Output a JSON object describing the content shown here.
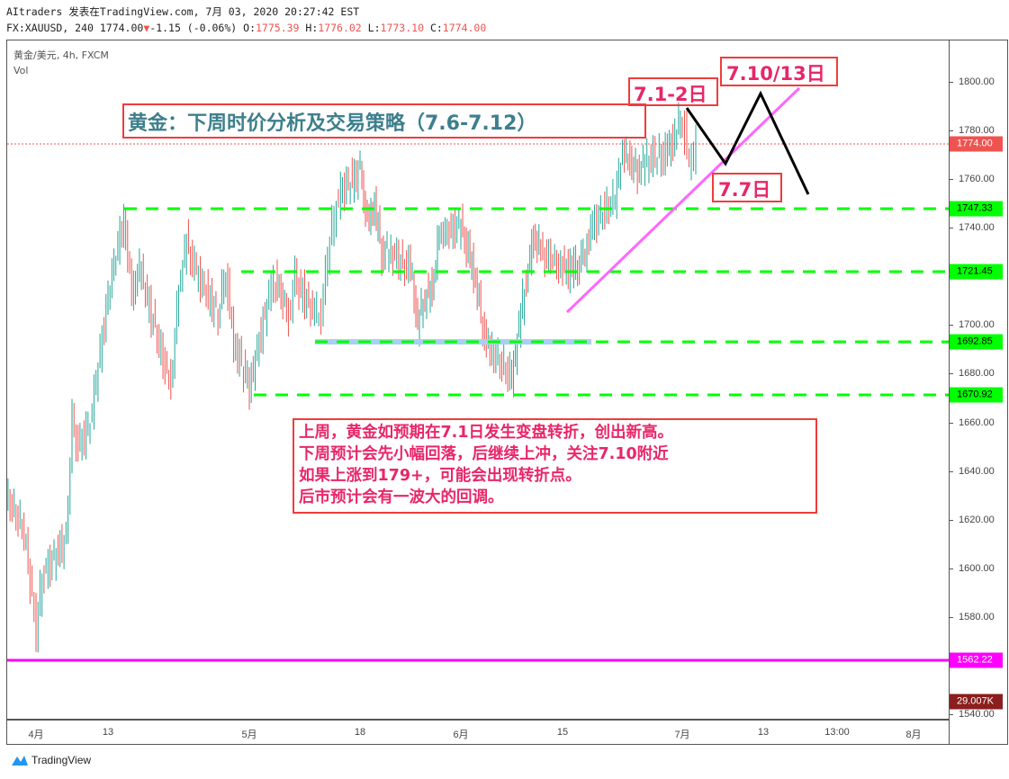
{
  "header": {
    "line1": "AItraders 发表在TradingView.com, 7月 03, 2020 20:27:42 EST",
    "symbol": "FX:XAUUSD, 240 1774.00",
    "change": "-1.15 (-0.06%)",
    "o_label": "O:",
    "o": "1775.39",
    "h_label": "H:",
    "h": "1776.02",
    "l_label": "L:",
    "l": "1773.10",
    "c_label": "C:",
    "c": "1774.00"
  },
  "legend": {
    "title": "黄金/美元, 4h, FXCM",
    "vol": "Vol"
  },
  "annotations": {
    "title": "黄金：下周时价分析及交易策略（7.6-7.12）",
    "label_71": "7.1-2日",
    "label_710": "7.10/13日",
    "label_77": "7.7日",
    "note": [
      "上周，黄金如预期在7.1日发生变盘转折，创出新高。",
      "下周预计会先小幅回落，后继续上冲，关注7.10附近",
      "如果上涨到179+，可能会出现转折点。",
      "后市预计会有一波大的回调。"
    ]
  },
  "price_tags": {
    "last": "1774.00",
    "l1": "1747.33",
    "l2": "1721.45",
    "l3": "1692.85",
    "l4": "1670.92",
    "l5": "1562.22",
    "volume": "29.007K"
  },
  "colors": {
    "up": "#26a69a",
    "down": "#ef5350",
    "support": "#00ff00",
    "magenta": "#ff00ff",
    "trend": "#ff66ff",
    "last": "#ef5350",
    "volume_tag": "#8b1e1e"
  },
  "brand": "TradingView",
  "chart_data": {
    "type": "ohlc-bars",
    "title": "黄金/美元, 4h, FXCM",
    "ylim": [
      1535,
      1815
    ],
    "y_ticks": [
      "1800.00",
      "1780.00",
      "1760.00",
      "1740.00",
      "1700.00",
      "1680.00",
      "1660.00",
      "1640.00",
      "1620.00",
      "1600.00",
      "1580.00",
      "1540.00"
    ],
    "x_ticks": [
      "4月",
      "13",
      "5月",
      "18",
      "6月",
      "15",
      "7月",
      "13",
      "13:00",
      "8月"
    ],
    "levels": [
      1774.0,
      1747.33,
      1721.45,
      1692.85,
      1670.92,
      1562.22
    ],
    "closes": [
      [
        "2020-03-27",
        1630
      ],
      [
        "2020-03-30",
        1615
      ],
      [
        "2020-04-01",
        1575
      ],
      [
        "2020-04-02",
        1597
      ],
      [
        "2020-04-06",
        1612
      ],
      [
        "2020-04-07",
        1660
      ],
      [
        "2020-04-08",
        1649
      ],
      [
        "2020-04-10",
        1660
      ],
      [
        "2020-04-13",
        1712
      ],
      [
        "2020-04-15",
        1745
      ],
      [
        "2020-04-16",
        1712
      ],
      [
        "2020-04-17",
        1723
      ],
      [
        "2020-04-20",
        1686
      ],
      [
        "2020-04-21",
        1675
      ],
      [
        "2020-04-22",
        1715
      ],
      [
        "2020-04-23",
        1734
      ],
      [
        "2020-04-24",
        1723
      ],
      [
        "2020-04-27",
        1704
      ],
      [
        "2020-04-28",
        1723
      ],
      [
        "2020-04-29",
        1693
      ],
      [
        "2020-05-01",
        1675
      ],
      [
        "2020-05-04",
        1712
      ],
      [
        "2020-05-05",
        1719
      ],
      [
        "2020-05-07",
        1704
      ],
      [
        "2020-05-08",
        1719
      ],
      [
        "2020-05-11",
        1704
      ],
      [
        "2020-05-12",
        1704
      ],
      [
        "2020-05-13",
        1730
      ],
      [
        "2020-05-14",
        1745
      ],
      [
        "2020-05-15",
        1755
      ],
      [
        "2020-05-18",
        1763
      ],
      [
        "2020-05-19",
        1741
      ],
      [
        "2020-05-20",
        1749
      ],
      [
        "2020-05-21",
        1730
      ],
      [
        "2020-05-22",
        1730
      ],
      [
        "2020-05-25",
        1723
      ],
      [
        "2020-05-26",
        1700
      ],
      [
        "2020-05-27",
        1712
      ],
      [
        "2020-05-28",
        1715
      ],
      [
        "2020-05-29",
        1737
      ],
      [
        "2020-06-01",
        1741
      ],
      [
        "2020-06-02",
        1730
      ],
      [
        "2020-06-03",
        1719
      ],
      [
        "2020-06-04",
        1700
      ],
      [
        "2020-06-05",
        1690
      ],
      [
        "2020-06-08",
        1678
      ],
      [
        "2020-06-09",
        1700
      ],
      [
        "2020-06-10",
        1719
      ],
      [
        "2020-06-11",
        1737
      ],
      [
        "2020-06-12",
        1730
      ],
      [
        "2020-06-15",
        1723
      ],
      [
        "2020-06-16",
        1723
      ],
      [
        "2020-06-17",
        1725
      ],
      [
        "2020-06-18",
        1730
      ],
      [
        "2020-06-19",
        1741
      ],
      [
        "2020-06-22",
        1752
      ],
      [
        "2020-06-23",
        1771
      ],
      [
        "2020-06-24",
        1767
      ],
      [
        "2020-06-25",
        1763
      ],
      [
        "2020-06-26",
        1767
      ],
      [
        "2020-06-29",
        1771
      ],
      [
        "2020-06-30",
        1778
      ],
      [
        "2020-07-01",
        1786
      ],
      [
        "2020-07-02",
        1767
      ],
      [
        "2020-07-03",
        1774
      ]
    ]
  }
}
